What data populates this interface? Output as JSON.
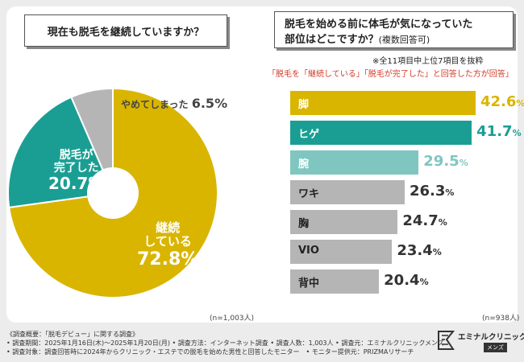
{
  "left": {
    "question": "現在も脱毛を継続していますか？",
    "n_label": "(n=1,003人)"
  },
  "right": {
    "question_line1": "脱毛を始める前に体毛が気になっていた",
    "question_line2": "部位はどこですか？",
    "question_note": "(複数回答可)",
    "note1": "※全11項目中上位7項目を抜粋",
    "note2": "「脱毛を「継続している」「脱毛が完了した」と回答した方が回答」",
    "n_label": "(n=938人)"
  },
  "chart_data": [
    {
      "type": "pie",
      "title": "現在も脱毛を継続していますか？",
      "slices": [
        {
          "label": "継続している",
          "label_lines": [
            "継続",
            "している"
          ],
          "value": 72.8,
          "pct_text": "72.8%",
          "color": "#d9b500"
        },
        {
          "label": "脱毛が完了した",
          "label_lines": [
            "脱毛が",
            "完了した"
          ],
          "value": 20.7,
          "pct_text": "20.7%",
          "color": "#1a9e93"
        },
        {
          "label": "やめてしまった",
          "label_lines": [
            "やめてしまった"
          ],
          "value": 6.5,
          "pct_text": "6.5%",
          "color": "#b5b5b5"
        }
      ]
    },
    {
      "type": "bar",
      "title": "脱毛を始める前に体毛が気になっていた部位はどこですか？",
      "categories": [
        "脚",
        "ヒゲ",
        "腕",
        "ワキ",
        "胸",
        "VIO",
        "背中"
      ],
      "values": [
        42.6,
        41.7,
        29.5,
        26.3,
        24.7,
        23.4,
        20.4
      ],
      "value_texts": [
        "42.6%",
        "41.7%",
        "29.5%",
        "26.3%",
        "24.7%",
        "23.4%",
        "20.4%"
      ],
      "colors": [
        "#d9b500",
        "#1a9e93",
        "#7fc6c0",
        "#b5b5b5",
        "#b5b5b5",
        "#b5b5b5",
        "#b5b5b5"
      ],
      "xlim": [
        0,
        50
      ]
    }
  ],
  "footer": {
    "line1": "《調査概要：「脱毛デビュー」に関する調査》",
    "line2": "• 調査期間：2025年1月16日(木)〜2025年1月20日(月) • 調査方法：インターネット調査 • 調査人数：1,003人 • 調査元：エミナルクリニックメンズ",
    "line3": "• 調査対象：調査回答時に2024年からクリニック・エステでの脱毛を始めた男性と回答したモニター　• モニター提供元：PRIZMAリサーチ"
  },
  "logo": {
    "name": "エミナルクリニック",
    "tag": "メンズ"
  }
}
